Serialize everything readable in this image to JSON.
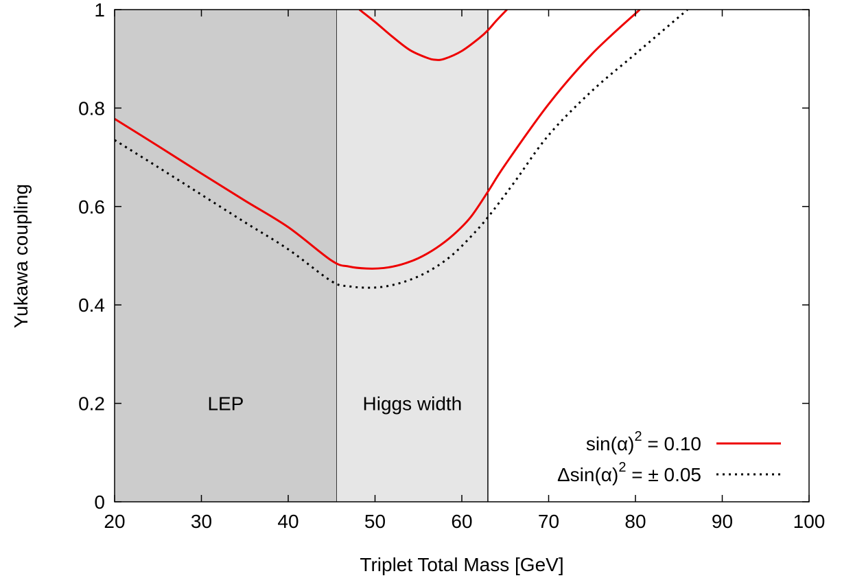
{
  "chart_data": {
    "type": "line",
    "xlabel": "Triplet Total Mass [GeV]",
    "ylabel": "Yukawa coupling",
    "xlim": [
      20,
      100
    ],
    "ylim": [
      0,
      1
    ],
    "x_ticks": [
      "20",
      "30",
      "40",
      "50",
      "60",
      "70",
      "80",
      "90",
      "100"
    ],
    "y_ticks": [
      "0",
      "0.2",
      "0.4",
      "0.6",
      "0.8",
      "1"
    ],
    "grid": false,
    "legend_position": "bottom-right",
    "regions": [
      {
        "label": "LEP",
        "x_range": [
          20,
          45.6
        ],
        "color": "#cccccc"
      },
      {
        "label": "Higgs width",
        "x_range": [
          45.6,
          63
        ],
        "color": "#e6e6e6"
      }
    ],
    "series": [
      {
        "name": "sin(α)² = 0.10",
        "legend_main": "sin(α)",
        "legend_sup": "2",
        "legend_tail": " = 0.10",
        "color": "#ee0000",
        "dash": "solid",
        "x": [
          20,
          25,
          30,
          35,
          40,
          45,
          47,
          49,
          51,
          53,
          55,
          57,
          59,
          61,
          63,
          65,
          70,
          75,
          80.5
        ],
        "y": [
          0.778,
          0.723,
          0.667,
          0.612,
          0.558,
          0.49,
          0.478,
          0.474,
          0.475,
          0.482,
          0.495,
          0.515,
          0.542,
          0.578,
          0.63,
          0.685,
          0.808,
          0.91,
          1.0
        ]
      },
      {
        "name": "sin(α)² = 0.10",
        "show_in_legend": false,
        "color": "#ee0000",
        "dash": "solid",
        "x": [
          48.2,
          50,
          52,
          54,
          56,
          57,
          58,
          60,
          62,
          63,
          64,
          65.2
        ],
        "y": [
          1.0,
          0.975,
          0.945,
          0.918,
          0.902,
          0.898,
          0.9,
          0.916,
          0.942,
          0.958,
          0.978,
          1.0
        ]
      },
      {
        "name": "Δsin(α)² = ± 0.05",
        "legend_main": "Δsin(α)",
        "legend_sup": "2",
        "legend_tail": " = ± 0.05",
        "color": "#000000",
        "dash": "dotted",
        "x": [
          20,
          25,
          30,
          35,
          40,
          45,
          47,
          49,
          51,
          53,
          55,
          57,
          59,
          61,
          63,
          66,
          70,
          75,
          80,
          86
        ],
        "y": [
          0.735,
          0.68,
          0.624,
          0.568,
          0.513,
          0.448,
          0.438,
          0.435,
          0.437,
          0.445,
          0.458,
          0.477,
          0.503,
          0.538,
          0.578,
          0.648,
          0.745,
          0.835,
          0.91,
          1.0
        ]
      }
    ]
  }
}
